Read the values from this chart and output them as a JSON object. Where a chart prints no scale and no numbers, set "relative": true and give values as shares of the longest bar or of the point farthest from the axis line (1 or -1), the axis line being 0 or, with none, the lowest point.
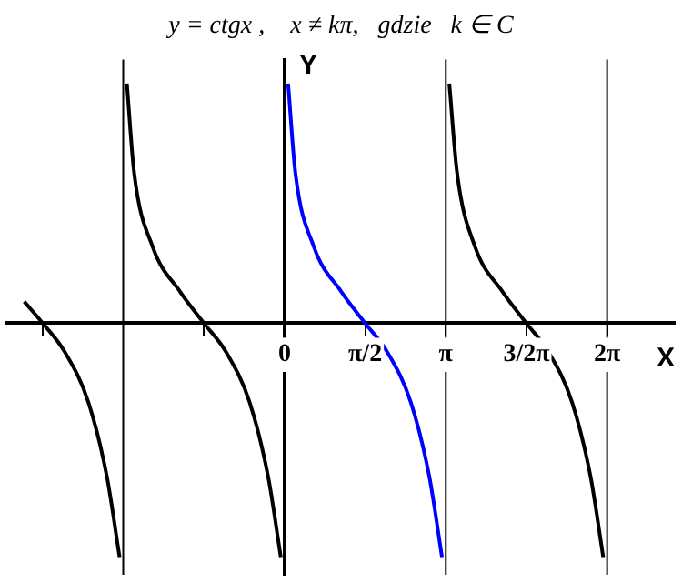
{
  "chart_data": {
    "type": "line",
    "title": "y = ctgx ,    x ≠ kπ,   gdzie   k ∈ C",
    "xlabel": "X",
    "ylabel": "Y",
    "relative": true,
    "grid": false,
    "legend": false,
    "marker": "none",
    "line_style": "solid",
    "xlim": [
      -5.4,
      7.6
    ],
    "xticks": [
      {
        "value": -4.7124,
        "label": null
      },
      {
        "value": -1.5708,
        "label": null
      },
      {
        "value": 0,
        "label": "0"
      },
      {
        "value": 1.5708,
        "label": "π/2"
      },
      {
        "value": 3.1416,
        "label": "π"
      },
      {
        "value": 4.7124,
        "label": "3/2π"
      },
      {
        "value": 6.2832,
        "label": "2π"
      }
    ],
    "ref_lines": [
      {
        "axis": "x",
        "value": -3.1416,
        "color": "#000000"
      },
      {
        "axis": "x",
        "value": 3.1416,
        "color": "#000000"
      },
      {
        "axis": "x",
        "value": 6.2832,
        "color": "#000000"
      }
    ],
    "series": [
      {
        "color": "#000000",
        "x": [
          -5.07,
          -4.71,
          -4.28,
          -3.82,
          -3.46,
          -3.21
        ],
        "values": [
          0.09,
          0,
          -0.12,
          -0.33,
          -0.64,
          -0.98
        ]
      },
      {
        "color": "#000000",
        "x": [
          -3.07,
          -2.93,
          -2.57,
          -2.03,
          -1.57,
          -1.14,
          -0.68,
          -0.32,
          -0.07
        ],
        "values": [
          1,
          0.63,
          0.32,
          0.13,
          0,
          -0.12,
          -0.33,
          -0.64,
          -0.98
        ]
      },
      {
        "color": "#0000ff",
        "x": [
          0.07,
          0.21,
          0.57,
          1.11,
          1.57,
          2.0,
          2.46,
          2.82,
          3.07
        ],
        "values": [
          1,
          0.63,
          0.32,
          0.13,
          0,
          -0.12,
          -0.33,
          -0.64,
          -0.98
        ]
      },
      {
        "color": "#000000",
        "x": [
          3.21,
          3.36,
          3.71,
          4.25,
          4.71,
          5.14,
          5.6,
          5.96,
          6.21
        ],
        "values": [
          1,
          0.63,
          0.32,
          0.13,
          0,
          -0.12,
          -0.33,
          -0.64,
          -0.98
        ]
      }
    ]
  }
}
